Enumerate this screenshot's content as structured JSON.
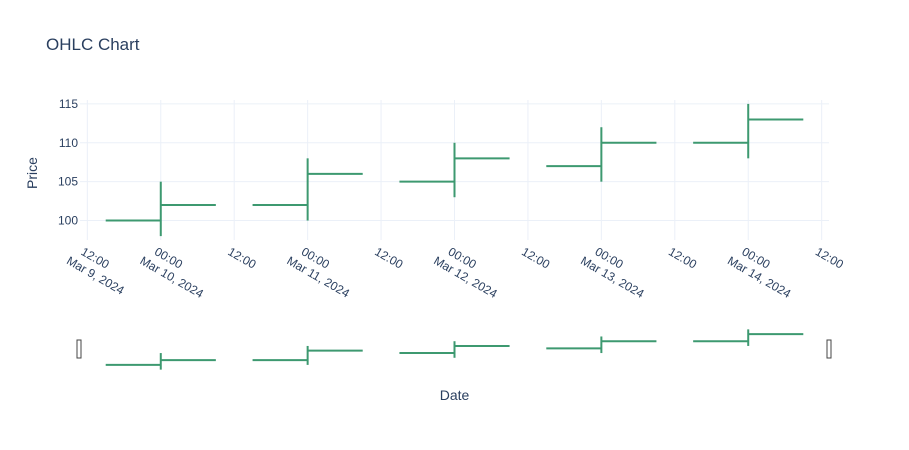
{
  "chart_data": {
    "type": "ohlc",
    "title": "OHLC Chart",
    "xlabel": "Date",
    "ylabel": "Price",
    "series": [
      {
        "x": [
          "2024-03-10",
          "2024-03-11",
          "2024-03-12",
          "2024-03-13",
          "2024-03-14"
        ],
        "open": [
          100,
          102,
          105,
          107,
          110
        ],
        "high": [
          105,
          108,
          110,
          112,
          115
        ],
        "low": [
          98,
          100,
          103,
          105,
          108
        ],
        "close": [
          102,
          106,
          108,
          110,
          113
        ],
        "color": "#3d9970"
      }
    ],
    "yticks": [
      "100",
      "105",
      "110",
      "115"
    ],
    "xticks": [
      {
        "time": "2024-03-09T12:00",
        "line1": "12:00",
        "line2": "Mar 9, 2024"
      },
      {
        "time": "2024-03-10T00:00",
        "line1": "00:00",
        "line2": "Mar 10, 2024"
      },
      {
        "time": "2024-03-10T12:00",
        "line1": "12:00",
        "line2": ""
      },
      {
        "time": "2024-03-11T00:00",
        "line1": "00:00",
        "line2": "Mar 11, 2024"
      },
      {
        "time": "2024-03-11T12:00",
        "line1": "12:00",
        "line2": ""
      },
      {
        "time": "2024-03-12T00:00",
        "line1": "00:00",
        "line2": "Mar 12, 2024"
      },
      {
        "time": "2024-03-12T12:00",
        "line1": "12:00",
        "line2": ""
      },
      {
        "time": "2024-03-13T00:00",
        "line1": "00:00",
        "line2": "Mar 13, 2024"
      },
      {
        "time": "2024-03-13T12:00",
        "line1": "12:00",
        "line2": ""
      },
      {
        "time": "2024-03-14T00:00",
        "line1": "00:00",
        "line2": "Mar 14, 2024"
      },
      {
        "time": "2024-03-14T12:00",
        "line1": "12:00",
        "line2": ""
      }
    ],
    "xrange": [
      "2024-03-09T10:48",
      "2024-03-14T13:12"
    ],
    "yrange": [
      97.5,
      115.5
    ],
    "rangeslider": true,
    "grid": true,
    "colors": {
      "increasing": "#3d9970",
      "text": "#2a3f5f",
      "grid": "#ebf0f8"
    }
  }
}
